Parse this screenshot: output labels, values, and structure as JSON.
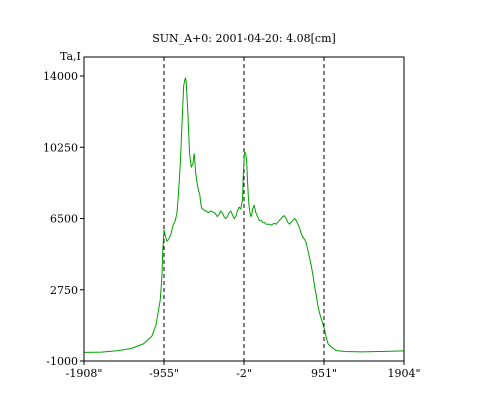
{
  "chart_data": {
    "type": "line",
    "title": "SUN_A+0: 2001-04-20: 4.08[cm]",
    "ylabel": "Ta,I",
    "xlabel": "",
    "xlim": [
      -1908,
      1904
    ],
    "ylim": [
      -1000,
      15000
    ],
    "xticks": [
      {
        "value": -1908,
        "label": "-1908\""
      },
      {
        "value": -955,
        "label": "-955\""
      },
      {
        "value": -2,
        "label": "-2\""
      },
      {
        "value": 951,
        "label": "951\""
      },
      {
        "value": 1904,
        "label": "1904\""
      }
    ],
    "yticks": [
      {
        "value": -1000,
        "label": "-1000"
      },
      {
        "value": 2750,
        "label": "2750"
      },
      {
        "value": 6500,
        "label": "6500"
      },
      {
        "value": 10250,
        "label": "10250"
      },
      {
        "value": 14000,
        "label": "14000"
      }
    ],
    "markers": [
      -955,
      -2,
      951
    ],
    "grid": false,
    "colors": {
      "line": "#00a000",
      "markers": "#000000",
      "axes": "#000000"
    },
    "series": [
      {
        "x": [
          -1900,
          -1700,
          -1500,
          -1350,
          -1200,
          -1100,
          -1050,
          -1000,
          -980,
          -970,
          -955,
          -940,
          -920,
          -900,
          -870,
          -850,
          -820,
          -800,
          -780,
          -760,
          -740,
          -720,
          -700,
          -690,
          -670,
          -650,
          -630,
          -610,
          -600,
          -595,
          -590,
          -580,
          -560,
          -540,
          -530,
          -520,
          -510,
          -500,
          -490,
          -470,
          -450,
          -430,
          -400,
          -380,
          -350,
          -320,
          -300,
          -280,
          -260,
          -240,
          -220,
          -200,
          -180,
          -160,
          -140,
          -120,
          -100,
          -80,
          -60,
          -40,
          -20,
          -10,
          -2,
          5,
          20,
          30,
          40,
          50,
          60,
          70,
          80,
          90,
          100,
          120,
          140,
          160,
          180,
          200,
          220,
          240,
          260,
          280,
          300,
          320,
          340,
          360,
          380,
          400,
          420,
          440,
          460,
          480,
          500,
          520,
          540,
          560,
          580,
          600,
          620,
          640,
          660,
          680,
          700,
          720,
          740,
          760,
          780,
          800,
          820,
          840,
          860,
          880,
          900,
          920,
          940,
          960,
          980,
          1000,
          1050,
          1100,
          1200,
          1400,
          1600,
          1800,
          1900
        ],
        "y": [
          -550,
          -530,
          -450,
          -350,
          -100,
          300,
          900,
          2200,
          3400,
          4700,
          5900,
          5600,
          5300,
          5400,
          5700,
          6100,
          6400,
          6800,
          8000,
          9500,
          11500,
          13500,
          13900,
          13700,
          12000,
          9900,
          9200,
          9400,
          9800,
          9900,
          9700,
          9000,
          8300,
          7900,
          7800,
          7400,
          7100,
          7000,
          7000,
          6900,
          6900,
          6800,
          6900,
          6850,
          6800,
          6600,
          6700,
          6900,
          6800,
          6600,
          6500,
          6600,
          6800,
          6900,
          6700,
          6500,
          6600,
          6900,
          7100,
          7000,
          7500,
          8800,
          9500,
          10000,
          9900,
          9500,
          8500,
          7600,
          7100,
          6800,
          6600,
          6700,
          7000,
          7200,
          6800,
          6600,
          6400,
          6400,
          6300,
          6300,
          6200,
          6200,
          6200,
          6150,
          6200,
          6250,
          6200,
          6300,
          6400,
          6500,
          6600,
          6650,
          6500,
          6300,
          6200,
          6300,
          6400,
          6500,
          6400,
          6200,
          6000,
          5700,
          5500,
          5400,
          5200,
          4800,
          4400,
          4000,
          3500,
          2900,
          2400,
          1900,
          1500,
          1200,
          900,
          600,
          200,
          -100,
          -300,
          -450,
          -500,
          -520,
          -500,
          -480,
          -470
        ]
      }
    ]
  }
}
